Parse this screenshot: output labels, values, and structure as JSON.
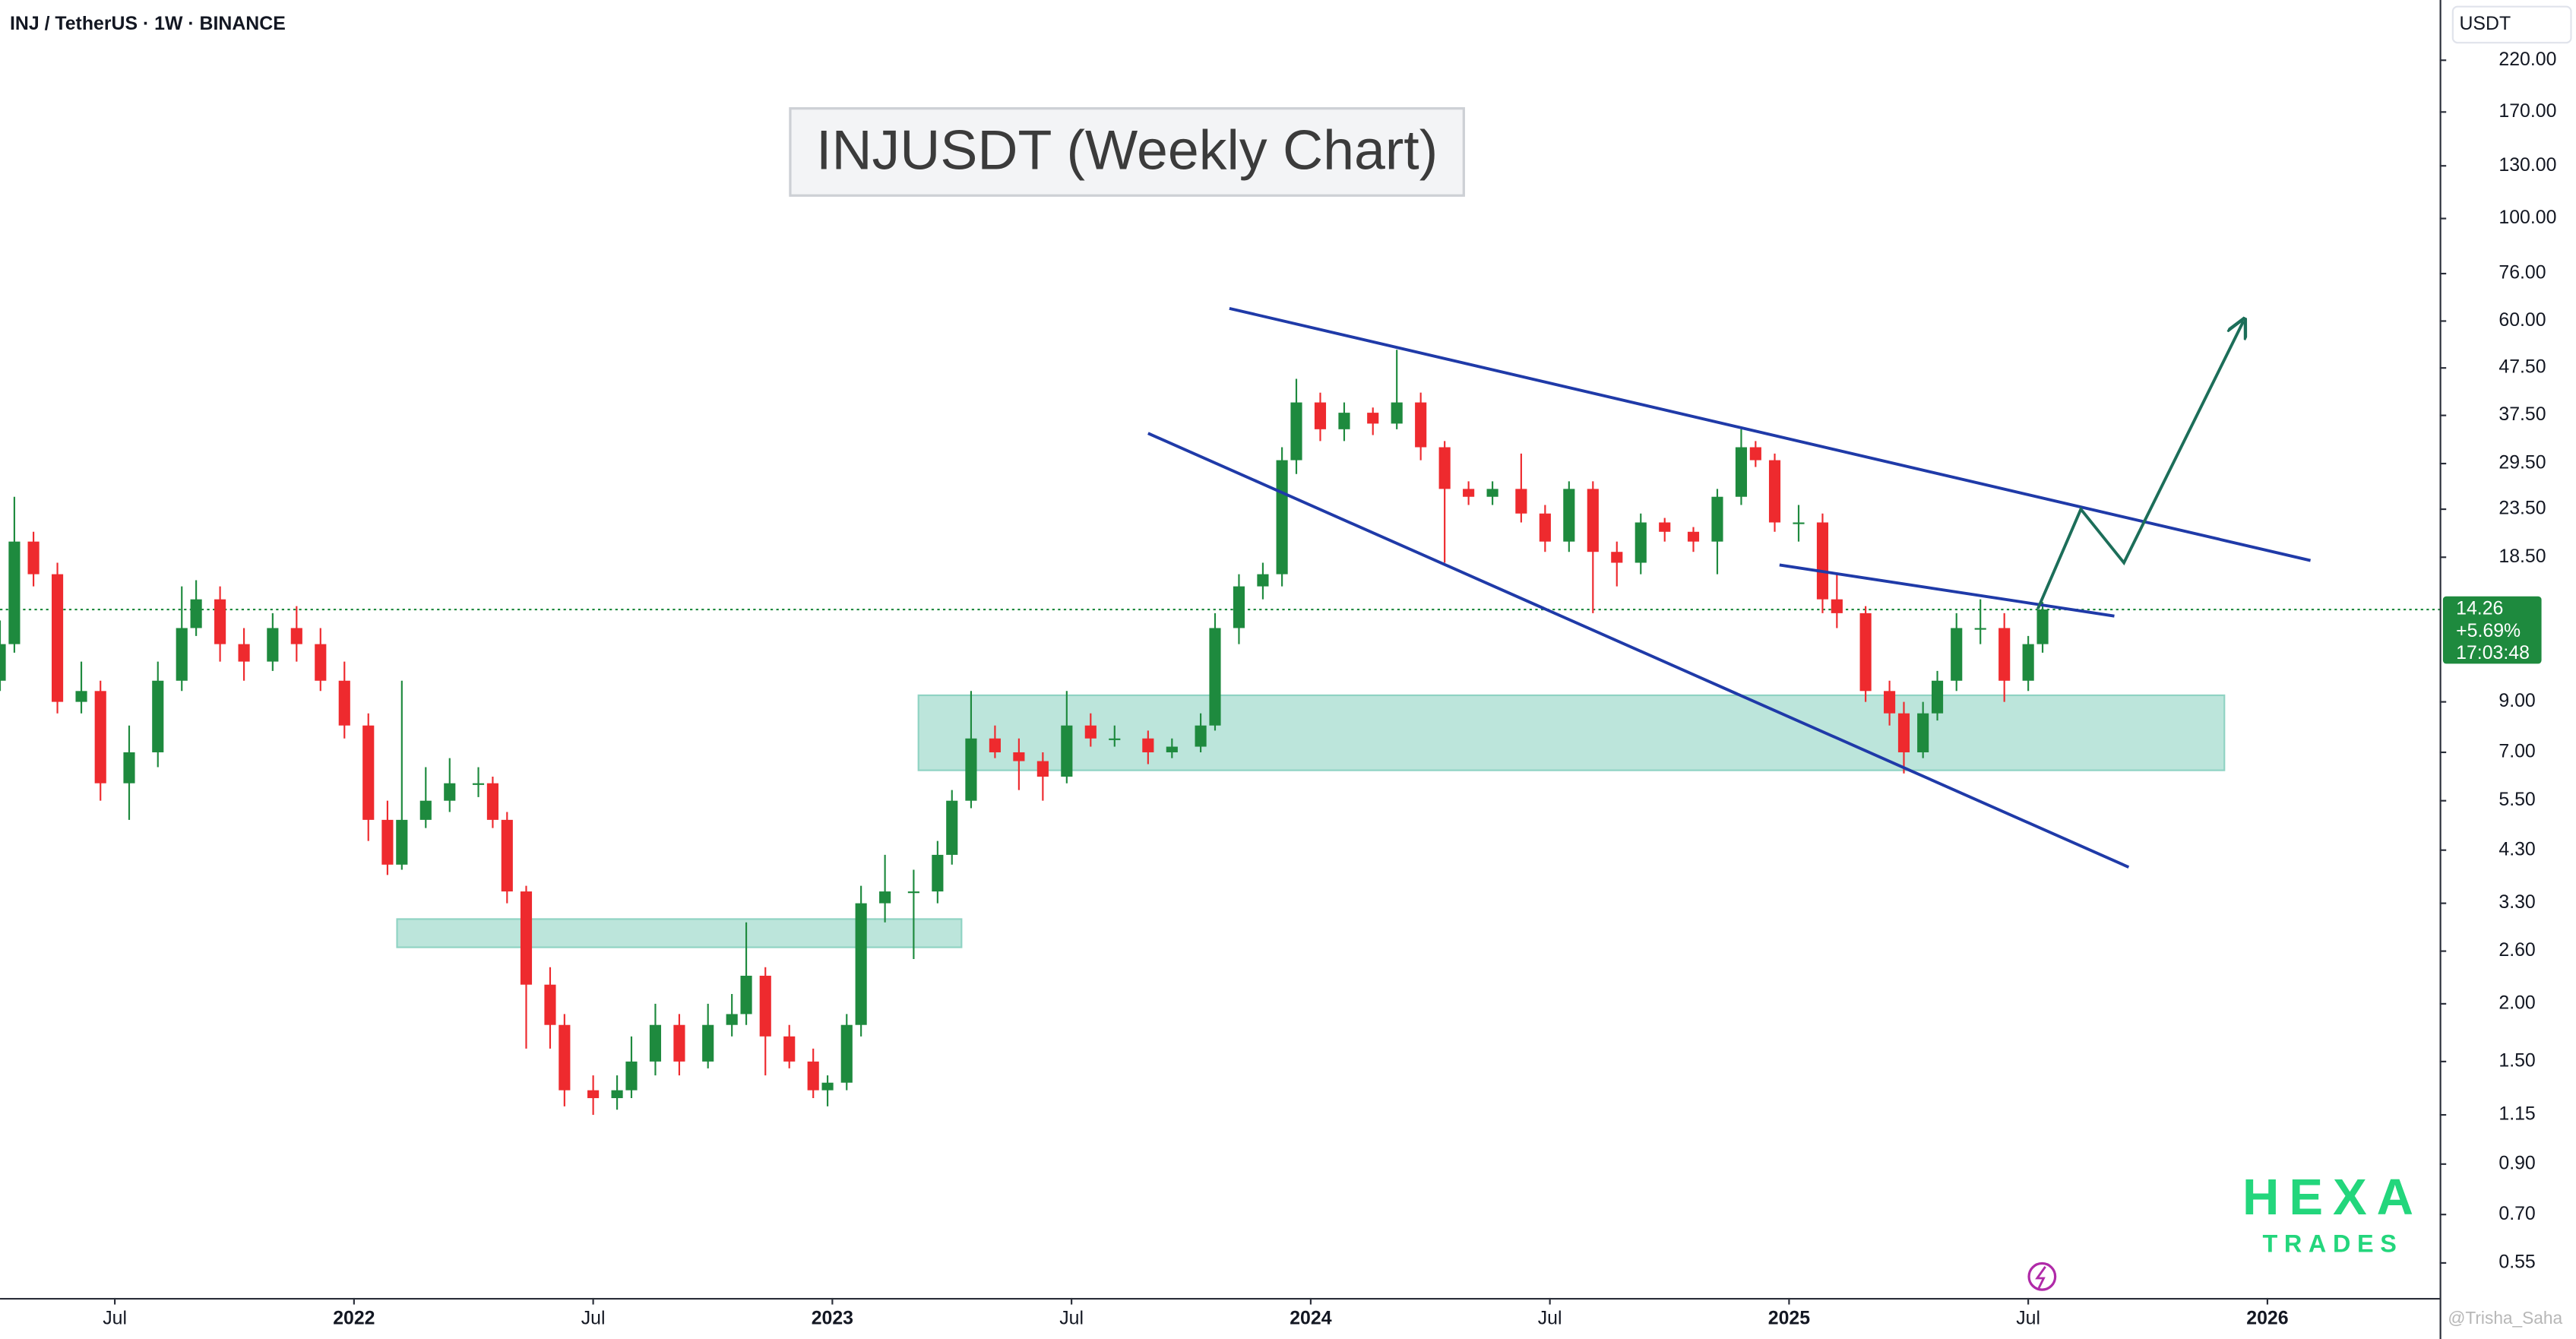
{
  "header": "INJ / TetherUS · 1W · BINANCE",
  "watermark": "@Trisha_Saha",
  "brand": {
    "name": "HEXA",
    "tagline": "TRADES"
  },
  "chart_data": {
    "type": "candlestick",
    "title": "INJUSDT (Weekly Chart)",
    "y_unit": "USDT",
    "log_scale": true,
    "grid": false,
    "up_color": "#1e8a3e",
    "down_color": "#ee2a2e",
    "zone_color": "#8fd3c3",
    "line_color": "#1f3aa8",
    "projection_color": "#1c6e59",
    "xlim": [
      2021.26,
      2026.36
    ],
    "xticks": [
      {
        "value": 2021.5,
        "label": "Jul"
      },
      2022,
      {
        "value": 2022.5,
        "label": "Jul"
      },
      2023,
      {
        "value": 2023.5,
        "label": "Jul"
      },
      2024,
      {
        "value": 2024.5,
        "label": "Jul"
      },
      2025,
      {
        "value": 2025.5,
        "label": "Jul"
      },
      2026
    ],
    "ylim": [
      0.462,
      297
    ],
    "yticks": [
      {
        "value": 220,
        "label": "220.00"
      },
      {
        "value": 170,
        "label": "170.00"
      },
      {
        "value": 130,
        "label": "130.00"
      },
      {
        "value": 100,
        "label": "100.00"
      },
      {
        "value": 76,
        "label": "76.00"
      },
      {
        "value": 60,
        "label": "60.00"
      },
      {
        "value": 47.5,
        "label": "47.50"
      },
      {
        "value": 37.5,
        "label": "37.50"
      },
      {
        "value": 29.5,
        "label": "29.50"
      },
      {
        "value": 23.5,
        "label": "23.50"
      },
      {
        "value": 18.5,
        "label": "18.50"
      },
      {
        "value": 9,
        "label": "9.00"
      },
      {
        "value": 7,
        "label": "7.00"
      },
      {
        "value": 5.5,
        "label": "5.50"
      },
      {
        "value": 4.3,
        "label": "4.30"
      },
      {
        "value": 3.3,
        "label": "3.30"
      },
      {
        "value": 2.6,
        "label": "2.60"
      },
      {
        "value": 2,
        "label": "2.00"
      },
      {
        "value": 1.5,
        "label": "1.50"
      },
      {
        "value": 1.15,
        "label": "1.15"
      },
      {
        "value": 0.9,
        "label": "0.90"
      },
      {
        "value": 0.7,
        "label": "0.70"
      },
      {
        "value": 0.55,
        "label": "0.55"
      }
    ],
    "x": [
      2021.26,
      2021.29,
      2021.33,
      2021.38,
      2021.43,
      2021.47,
      2021.53,
      2021.59,
      2021.64,
      2021.67,
      2021.72,
      2021.77,
      2021.83,
      2021.88,
      2021.93,
      2021.98,
      2022.03,
      2022.07,
      2022.1,
      2022.15,
      2022.2,
      2022.26,
      2022.29,
      2022.32,
      2022.36,
      2022.41,
      2022.44,
      2022.5,
      2022.55,
      2022.58,
      2022.63,
      2022.68,
      2022.74,
      2022.79,
      2022.82,
      2022.86,
      2022.91,
      2022.96,
      2022.99,
      2023.03,
      2023.06,
      2023.11,
      2023.17,
      2023.22,
      2023.25,
      2023.29,
      2023.34,
      2023.39,
      2023.44,
      2023.49,
      2023.54,
      2023.59,
      2023.66,
      2023.71,
      2023.77,
      2023.8,
      2023.85,
      2023.9,
      2023.94,
      2023.97,
      2024.02,
      2024.07,
      2024.13,
      2024.18,
      2024.23,
      2024.28,
      2024.33,
      2024.38,
      2024.44,
      2024.49,
      2024.54,
      2024.59,
      2024.64,
      2024.69,
      2024.74,
      2024.8,
      2024.85,
      2024.9,
      2024.93,
      2024.97,
      2025.02,
      2025.07,
      2025.1,
      2025.16,
      2025.21,
      2025.24,
      2025.28,
      2025.31,
      2025.35,
      2025.4,
      2025.45,
      2025.5,
      2025.53
    ],
    "open": [
      10,
      12,
      20,
      17,
      9,
      9.5,
      6,
      7,
      10,
      13,
      15,
      12,
      11,
      13,
      12,
      10,
      8,
      5,
      4,
      5,
      5.5,
      6,
      6,
      5,
      3.5,
      2.2,
      1.8,
      1.3,
      1.25,
      1.3,
      1.5,
      1.8,
      1.5,
      1.8,
      1.9,
      2.3,
      1.7,
      1.5,
      1.3,
      1.35,
      1.8,
      3.3,
      3.5,
      3.5,
      4.2,
      5.5,
      7.5,
      7,
      6.7,
      6.2,
      8,
      7.5,
      7.5,
      7,
      7.2,
      8,
      13,
      16,
      17,
      30,
      40,
      35,
      38,
      36,
      40,
      32,
      26,
      25,
      26,
      23,
      20,
      26,
      19,
      18,
      22,
      21,
      20,
      25,
      32,
      30,
      22,
      22,
      15,
      14,
      9.5,
      8.5,
      7,
      8.5,
      10,
      13,
      13,
      10,
      12
    ],
    "high": [
      13.5,
      25,
      21,
      18,
      11,
      10,
      8,
      11,
      16,
      16.5,
      16,
      13,
      14,
      14.5,
      13,
      11,
      8.5,
      5.5,
      10,
      6.5,
      6.8,
      6.5,
      6.2,
      5.2,
      3.6,
      2.4,
      1.9,
      1.4,
      1.4,
      1.7,
      2,
      1.9,
      2,
      2.1,
      3,
      2.4,
      1.8,
      1.6,
      1.4,
      1.9,
      3.6,
      4.2,
      3.9,
      4.5,
      5.8,
      9.5,
      8,
      7.5,
      7,
      9.5,
      8.5,
      8,
      7.8,
      7.5,
      8.5,
      14,
      17,
      18,
      32,
      45,
      42,
      40,
      39,
      52,
      42,
      33,
      27,
      27,
      31,
      24,
      27,
      27,
      20,
      23,
      22.5,
      21.5,
      26,
      35,
      33,
      31,
      24,
      23,
      17,
      14.5,
      10,
      9,
      9,
      10.5,
      14,
      15,
      14,
      12.5,
      14.8
    ],
    "low": [
      9.5,
      11.5,
      16,
      8.5,
      8.5,
      5.5,
      5,
      6.5,
      9.5,
      12.5,
      11,
      10,
      10.5,
      11,
      9.5,
      7.5,
      4.5,
      3.8,
      3.9,
      4.8,
      5.2,
      5.6,
      4.8,
      3.3,
      1.6,
      1.6,
      1.2,
      1.15,
      1.18,
      1.25,
      1.4,
      1.4,
      1.45,
      1.7,
      1.8,
      1.4,
      1.45,
      1.25,
      1.2,
      1.3,
      1.7,
      3,
      2.5,
      3.3,
      4,
      5.3,
      6.8,
      5.8,
      5.5,
      6,
      7.2,
      7.2,
      6.6,
      6.8,
      7,
      7.8,
      12,
      15,
      16,
      28,
      33,
      33,
      34,
      35,
      30,
      18,
      24,
      24,
      22,
      19,
      19,
      14,
      16,
      17,
      20,
      19,
      17,
      24,
      29,
      21,
      20,
      14,
      13,
      9,
      8,
      6.3,
      6.8,
      8.2,
      9.5,
      12,
      9,
      9.5,
      11.5
    ],
    "close": [
      12,
      20,
      17,
      9,
      9.5,
      6,
      7,
      10,
      13,
      15,
      12,
      11,
      13,
      12,
      10,
      8,
      5,
      4,
      5,
      5.5,
      6,
      6,
      5,
      3.5,
      2.2,
      1.8,
      1.3,
      1.25,
      1.3,
      1.5,
      1.8,
      1.5,
      1.8,
      1.9,
      2.3,
      1.7,
      1.5,
      1.3,
      1.35,
      1.8,
      3.3,
      3.5,
      3.5,
      4.2,
      5.5,
      7.5,
      7,
      6.7,
      6.2,
      8,
      7.5,
      7.5,
      7,
      7.2,
      8,
      13,
      16,
      17,
      30,
      40,
      35,
      38,
      36,
      40,
      32,
      26,
      25,
      26,
      23,
      20,
      26,
      19,
      18,
      22,
      21,
      20,
      25,
      32,
      30,
      22,
      22,
      15,
      14,
      9.5,
      8.5,
      7,
      8.5,
      10,
      13,
      13,
      10,
      12,
      14.26
    ],
    "price_label": {
      "value": 14.26,
      "label": "14.26",
      "change": "+5.69%",
      "countdown": "17:03:48"
    },
    "zones": [
      {
        "x": [
          2022.09,
          2023.27
        ],
        "y": [
          2.65,
          3.05
        ]
      },
      {
        "x": [
          2023.18,
          2025.91
        ],
        "y": [
          6.4,
          9.3
        ]
      }
    ],
    "trendlines": [
      {
        "x": [
          2023.83,
          2026.09
        ],
        "y": [
          63.9,
          18.2
        ]
      },
      {
        "x": [
          2023.66,
          2025.71
        ],
        "y": [
          34.3,
          3.95
        ]
      },
      {
        "x": [
          2024.98,
          2025.68
        ],
        "y": [
          17.8,
          13.8
        ]
      }
    ],
    "projection": {
      "x": [
        2025.52,
        2025.61,
        2025.7,
        2025.95
      ],
      "y": [
        14.3,
        23.5,
        18,
        60
      ]
    }
  }
}
